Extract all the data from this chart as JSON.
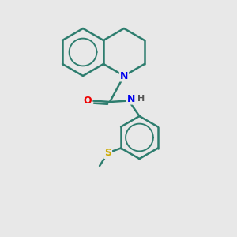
{
  "background_color": "#e8e8e8",
  "bond_color": "#2d7d6e",
  "bond_width": 1.8,
  "atom_colors": {
    "N": "#0000ee",
    "O": "#ee0000",
    "S": "#ccaa00",
    "C": "#2d7d6e",
    "H": "#555555"
  },
  "figsize": [
    3.0,
    3.0
  ],
  "dpi": 100,
  "xlim": [
    0,
    10
  ],
  "ylim": [
    0,
    10
  ]
}
